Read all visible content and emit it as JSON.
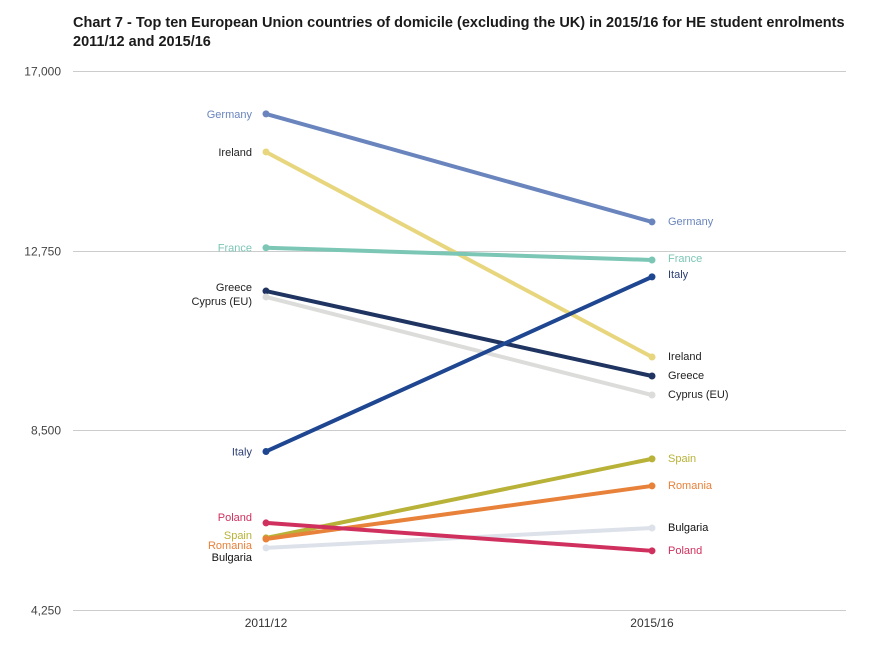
{
  "chart_data": {
    "type": "line",
    "subtype": "slope",
    "title": "Chart 7 - Top ten European Union countries of domicile (excluding the UK) in 2015/16 for HE student enrolments 2011/12 and 2015/16",
    "xlabel": "",
    "ylabel": "",
    "categories": [
      "2011/12",
      "2015/16"
    ],
    "ylim": [
      4250,
      17000
    ],
    "yticks": [
      4250,
      8500,
      12750,
      17000
    ],
    "ytick_labels": [
      "4,250",
      "8,500",
      "12,750",
      "17,000"
    ],
    "grid": true,
    "legend": "none (direct labels at both ends)",
    "series": [
      {
        "name": "Germany",
        "values": [
          15985,
          13430
        ],
        "color": "#6a85bd",
        "label_color_left": "#6a85bd",
        "label_color_right": "#6a85bd"
      },
      {
        "name": "Ireland",
        "values": [
          15085,
          10235
        ],
        "color": "#e8d67e",
        "label_color_left": "#222222",
        "label_color_right": "#222222"
      },
      {
        "name": "France",
        "values": [
          12820,
          12530
        ],
        "color": "#7cc6b6",
        "label_color_left": "#7cc6b6",
        "label_color_right": "#7cc6b6"
      },
      {
        "name": "Greece",
        "values": [
          11795,
          9785
        ],
        "color": "#1f3461",
        "label_color_left": "#222222",
        "label_color_right": "#222222"
      },
      {
        "name": "Cyprus (EU)",
        "values": [
          11655,
          9335
        ],
        "color": "#dcdcda",
        "label_color_left": "#222222",
        "label_color_right": "#222222"
      },
      {
        "name": "Italy",
        "values": [
          8000,
          12130
        ],
        "color": "#1f4690",
        "label_color_left": "#2c3e75",
        "label_color_right": "#2c3e75"
      },
      {
        "name": "Spain",
        "values": [
          5955,
          7825
        ],
        "color": "#b8b238",
        "label_color_left": "#b8b238",
        "label_color_right": "#b8b238"
      },
      {
        "name": "Romania",
        "values": [
          5930,
          7185
        ],
        "color": "#e8813a",
        "label_color_left": "#e8813a",
        "label_color_right": "#e8813a"
      },
      {
        "name": "Bulgaria",
        "values": [
          5720,
          6190
        ],
        "color": "#dde2ea",
        "label_color_left": "#111111",
        "label_color_right": "#111111"
      },
      {
        "name": "Poland",
        "values": [
          6310,
          5650
        ],
        "color": "#d0305e",
        "label_color_left": "#d0305e",
        "label_color_right": "#d0305e"
      }
    ]
  }
}
